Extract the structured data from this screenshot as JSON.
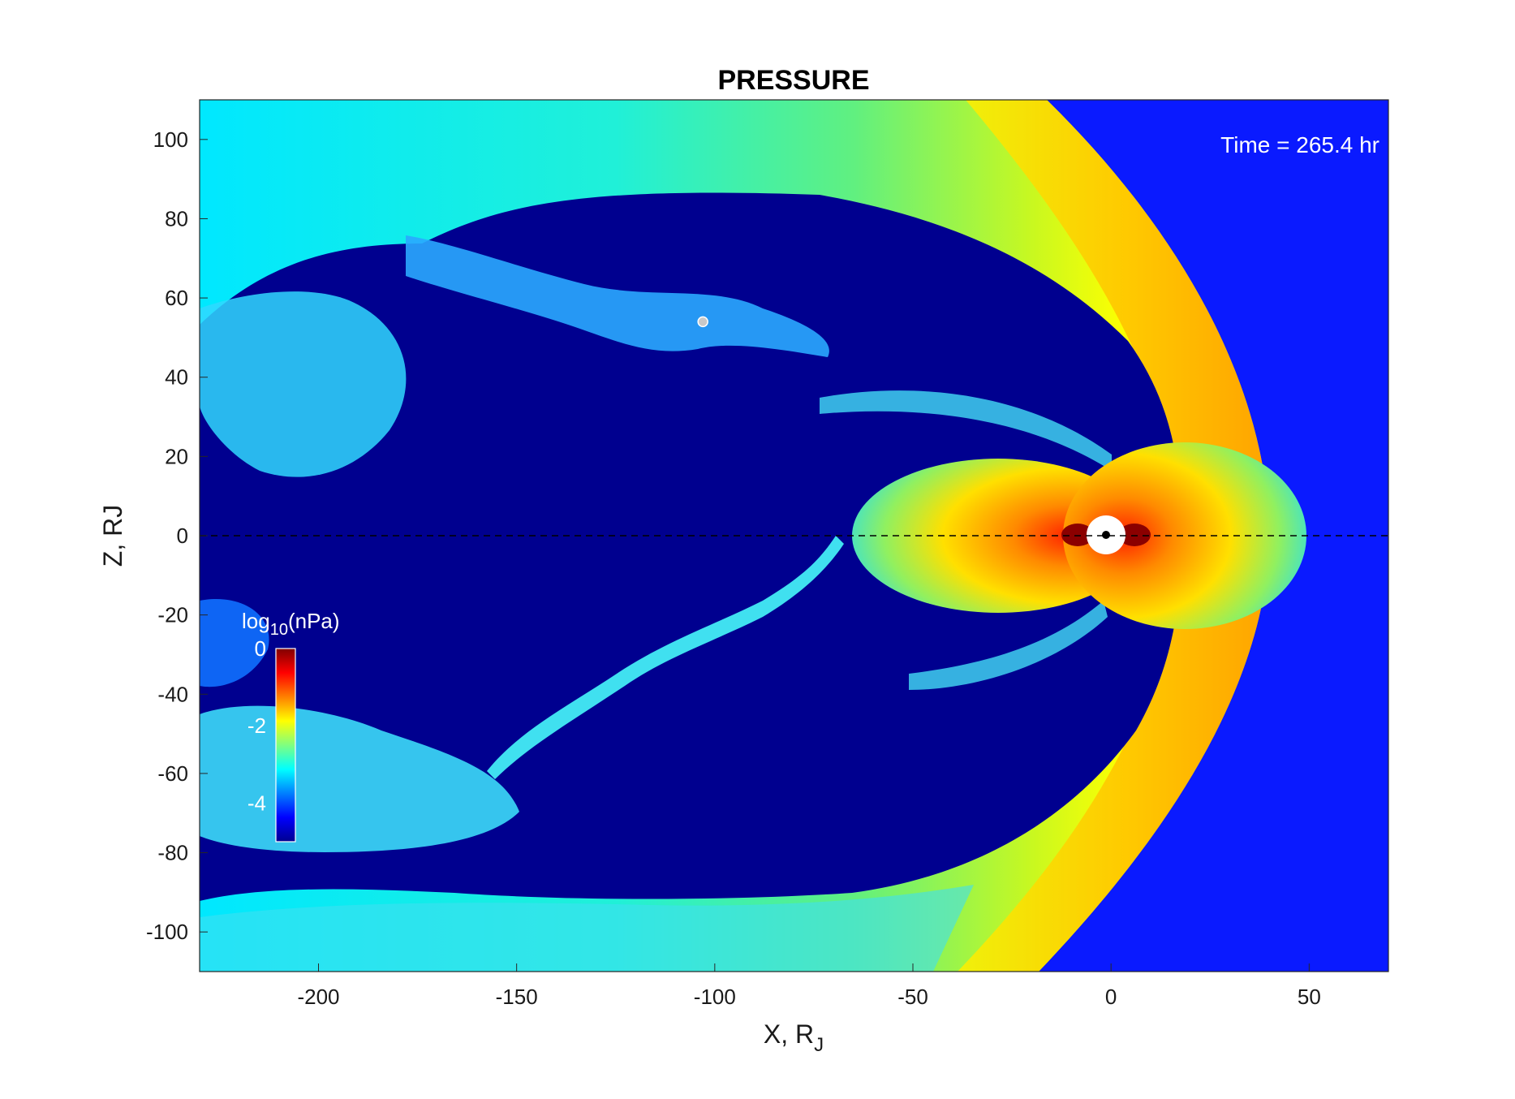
{
  "chart_data": {
    "type": "heatmap",
    "title": "PRESSURE",
    "xlabel": "X, R",
    "xlabel_subscript": "J",
    "ylabel": "Z, RJ",
    "xlim": [
      -230,
      70
    ],
    "ylim": [
      -110,
      110
    ],
    "xticks": [
      -200,
      -150,
      -100,
      -50,
      0,
      50
    ],
    "yticks": [
      100,
      80,
      60,
      40,
      20,
      0,
      -20,
      -40,
      -60,
      -80,
      -100
    ],
    "time_label": "Time = 265.4 hr",
    "colorbar": {
      "label_prefix": "log",
      "label_subscript": "10",
      "label_suffix": "(nPa)",
      "ticks": [
        0,
        -2,
        -4
      ],
      "range": [
        -5,
        0
      ],
      "colormap": "jet"
    },
    "spacecraft_marker": {
      "x": -103,
      "y": 54
    },
    "equator_line": {
      "y": 0,
      "style": "dashed"
    }
  },
  "colors": {
    "solar_wind": "#0a1aff",
    "lobe": "#00008f",
    "sheath_outer": "#ffa500",
    "sheath_mid": "#ffff00",
    "tail_plasma": "#00e5ff",
    "core": "#8b0000"
  }
}
